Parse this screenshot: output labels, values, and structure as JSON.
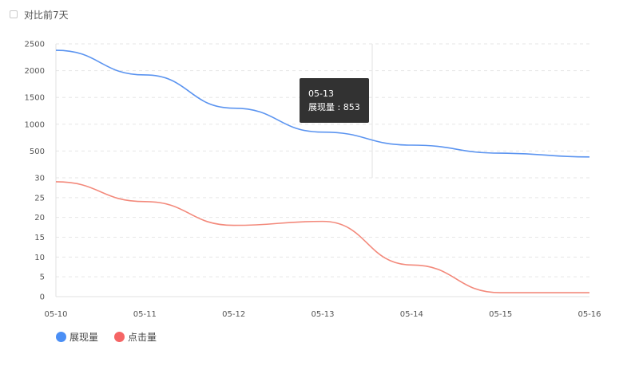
{
  "compare_label": "对比前7天",
  "tooltip": {
    "date": "05-13",
    "series": "展现量",
    "sep": " : ",
    "value": "853"
  },
  "chart_data": [
    {
      "type": "line",
      "categories": [
        "05-10",
        "05-11",
        "05-12",
        "05-13",
        "05-14",
        "05-15",
        "05-16"
      ],
      "series": [
        {
          "name": "展现量",
          "color": "#5b94f0",
          "values": [
            2380,
            1920,
            1300,
            853,
            610,
            460,
            390
          ]
        }
      ],
      "ylim": [
        0,
        2500
      ],
      "yticks": [
        2500,
        2000,
        1500,
        1000,
        500
      ],
      "grid": true
    },
    {
      "type": "line",
      "categories": [
        "05-10",
        "05-11",
        "05-12",
        "05-13",
        "05-14",
        "05-15",
        "05-16"
      ],
      "series": [
        {
          "name": "点击量",
          "color": "#f3897b",
          "values": [
            29,
            24,
            18,
            19,
            8,
            1,
            1
          ]
        }
      ],
      "ylim": [
        0,
        30
      ],
      "yticks": [
        30,
        25,
        20,
        15,
        10,
        5,
        0
      ],
      "grid": true
    }
  ],
  "legend": [
    {
      "name": "展现量",
      "color": "#4b8ff5"
    },
    {
      "name": "点击量",
      "color": "#f56565"
    }
  ]
}
